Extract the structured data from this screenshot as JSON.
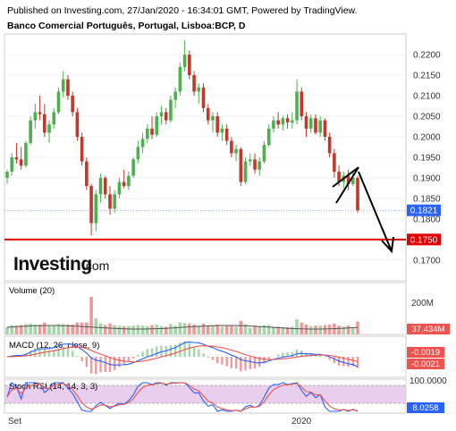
{
  "header": {
    "published": "Published on Investing.com, 27/Jan/2020 - 16:34:01 GMT, Powered by TradingView.",
    "symbol": "Banco Comercial Português, Portugal, Lisboa:BCP, D"
  },
  "logo": {
    "brand": "Investing",
    "suffix": ".com"
  },
  "colors": {
    "up": "#4caf50",
    "down": "#c0392b",
    "support": "#e00000",
    "last": "#2962ff",
    "macd": "#2962ff",
    "signal": "#ef5350",
    "stoch_k": "#2962ff",
    "stoch_d": "#ef5350",
    "stoch_band": "#e1bee7"
  },
  "chart_data": {
    "type": "candlestick",
    "price_axis": {
      "ticks": [
        "0.2200",
        "0.2150",
        "0.2100",
        "0.2050",
        "0.2000",
        "0.1950",
        "0.1900",
        "0.1850",
        "0.1800",
        "0.1750",
        "0.1700"
      ],
      "range": [
        0.168,
        0.2235
      ]
    },
    "time_axis": {
      "labels": [
        "Set",
        "2020"
      ]
    },
    "last_price": "0.1821",
    "support_level": "0.1750",
    "support_value": 0.175,
    "last_value": 0.1821,
    "candles": [
      [
        0.19,
        0.192,
        0.1885,
        0.1915
      ],
      [
        0.1915,
        0.196,
        0.1905,
        0.195
      ],
      [
        0.195,
        0.1985,
        0.1935,
        0.1945
      ],
      [
        0.1945,
        0.1975,
        0.192,
        0.193
      ],
      [
        0.193,
        0.199,
        0.1925,
        0.1985
      ],
      [
        0.1985,
        0.205,
        0.198,
        0.204
      ],
      [
        0.204,
        0.208,
        0.202,
        0.206
      ],
      [
        0.206,
        0.21,
        0.204,
        0.2055
      ],
      [
        0.2055,
        0.208,
        0.2,
        0.201
      ],
      [
        0.201,
        0.204,
        0.1985,
        0.203
      ],
      [
        0.203,
        0.207,
        0.202,
        0.206
      ],
      [
        0.206,
        0.212,
        0.2055,
        0.211
      ],
      [
        0.211,
        0.216,
        0.2095,
        0.214
      ],
      [
        0.214,
        0.215,
        0.209,
        0.21
      ],
      [
        0.21,
        0.211,
        0.205,
        0.206
      ],
      [
        0.206,
        0.207,
        0.199,
        0.2
      ],
      [
        0.2,
        0.201,
        0.193,
        0.194
      ],
      [
        0.194,
        0.195,
        0.187,
        0.188
      ],
      [
        0.188,
        0.1885,
        0.176,
        0.179
      ],
      [
        0.179,
        0.187,
        0.177,
        0.186
      ],
      [
        0.186,
        0.191,
        0.184,
        0.19
      ],
      [
        0.19,
        0.1905,
        0.185,
        0.186
      ],
      [
        0.186,
        0.188,
        0.181,
        0.1825
      ],
      [
        0.1825,
        0.187,
        0.1815,
        0.186
      ],
      [
        0.186,
        0.19,
        0.185,
        0.189
      ],
      [
        0.189,
        0.192,
        0.1875,
        0.188
      ],
      [
        0.188,
        0.1915,
        0.187,
        0.1905
      ],
      [
        0.1905,
        0.195,
        0.19,
        0.1945
      ],
      [
        0.1945,
        0.199,
        0.1935,
        0.1975
      ],
      [
        0.1975,
        0.201,
        0.196,
        0.1995
      ],
      [
        0.1995,
        0.203,
        0.1985,
        0.202
      ],
      [
        0.202,
        0.205,
        0.1995,
        0.2005
      ],
      [
        0.2005,
        0.206,
        0.2,
        0.205
      ],
      [
        0.205,
        0.2075,
        0.203,
        0.206
      ],
      [
        0.206,
        0.207,
        0.203,
        0.204
      ],
      [
        0.204,
        0.21,
        0.2035,
        0.209
      ],
      [
        0.209,
        0.212,
        0.207,
        0.211
      ],
      [
        0.211,
        0.218,
        0.21,
        0.217
      ],
      [
        0.217,
        0.2235,
        0.216,
        0.22
      ],
      [
        0.22,
        0.221,
        0.214,
        0.215
      ],
      [
        0.215,
        0.216,
        0.21,
        0.211
      ],
      [
        0.211,
        0.213,
        0.208,
        0.212
      ],
      [
        0.212,
        0.213,
        0.206,
        0.207
      ],
      [
        0.207,
        0.208,
        0.203,
        0.204
      ],
      [
        0.204,
        0.206,
        0.201,
        0.205
      ],
      [
        0.205,
        0.206,
        0.2,
        0.201
      ],
      [
        0.201,
        0.203,
        0.199,
        0.202
      ],
      [
        0.202,
        0.203,
        0.198,
        0.199
      ],
      [
        0.199,
        0.2,
        0.195,
        0.196
      ],
      [
        0.196,
        0.198,
        0.194,
        0.197
      ],
      [
        0.197,
        0.1975,
        0.188,
        0.189
      ],
      [
        0.189,
        0.195,
        0.1885,
        0.194
      ],
      [
        0.194,
        0.196,
        0.193,
        0.1945
      ],
      [
        0.1945,
        0.196,
        0.191,
        0.192
      ],
      [
        0.192,
        0.195,
        0.1905,
        0.194
      ],
      [
        0.194,
        0.199,
        0.1935,
        0.198
      ],
      [
        0.198,
        0.203,
        0.1975,
        0.202
      ],
      [
        0.202,
        0.205,
        0.201,
        0.204
      ],
      [
        0.204,
        0.206,
        0.202,
        0.203
      ],
      [
        0.203,
        0.205,
        0.2015,
        0.2045
      ],
      [
        0.2045,
        0.2055,
        0.202,
        0.2035
      ],
      [
        0.2035,
        0.206,
        0.202,
        0.204
      ],
      [
        0.204,
        0.214,
        0.203,
        0.211
      ],
      [
        0.211,
        0.212,
        0.204,
        0.205
      ],
      [
        0.205,
        0.206,
        0.2,
        0.202
      ],
      [
        0.202,
        0.2055,
        0.201,
        0.2045
      ],
      [
        0.2045,
        0.2055,
        0.2005,
        0.201
      ],
      [
        0.201,
        0.205,
        0.2,
        0.204
      ],
      [
        0.204,
        0.2045,
        0.199,
        0.2
      ],
      [
        0.2,
        0.201,
        0.195,
        0.196
      ],
      [
        0.196,
        0.197,
        0.19,
        0.1915
      ],
      [
        0.1915,
        0.193,
        0.188,
        0.189
      ],
      [
        0.189,
        0.1915,
        0.1875,
        0.1905
      ],
      [
        0.1905,
        0.192,
        0.187,
        0.1885
      ],
      [
        0.1885,
        0.1915,
        0.188,
        0.19
      ],
      [
        0.19,
        0.1905,
        0.1815,
        0.1821
      ]
    ],
    "volume": {
      "label": "Volume (20)",
      "axis_tick": "200M",
      "last_value": "37.434M"
    },
    "macd": {
      "label": "MACD (12, 26, close, 9)",
      "values": [
        "-0.0019",
        "-0.0021"
      ]
    },
    "stoch_rsi": {
      "label": "Stoch RSI (14, 14, 3, 3)",
      "axis_tick": "100.0000",
      "last_value": "8.0258"
    }
  }
}
